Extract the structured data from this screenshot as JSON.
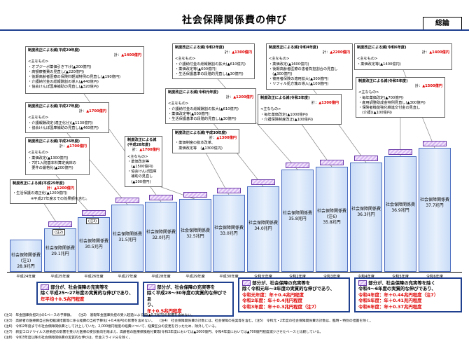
{
  "header": {
    "title": "社会保障関係費の伸び",
    "badge": "総論"
  },
  "bar_label": "社会保障関係費",
  "bars": [
    {
      "year": "平成24年度",
      "value": "28.9兆円",
      "note": "(注1)",
      "cap": false,
      "cap_tag": ""
    },
    {
      "year": "平成25年度",
      "value": "29.1兆円",
      "note": "",
      "cap": true,
      "cap_tag": "(注2)"
    },
    {
      "year": "平成26年度",
      "value": "30.5兆円",
      "note": "",
      "cap": true,
      "cap_tag": "(注3)"
    },
    {
      "year": "平成27年度",
      "value": "31.5兆円",
      "note": "",
      "cap": true,
      "cap_tag": ""
    },
    {
      "year": "平成28年度",
      "value": "32.0兆円",
      "note": "",
      "cap": true,
      "cap_tag": ""
    },
    {
      "year": "平成29年度",
      "value": "32.5兆円",
      "note": "",
      "cap": true,
      "cap_tag": ""
    },
    {
      "year": "平成30年度",
      "value": "33.0兆円",
      "note": "",
      "cap": true,
      "cap_tag": ""
    },
    {
      "year": "令和元年度",
      "value": "34.0兆円",
      "note": "",
      "cap": true,
      "cap_tag": ""
    },
    {
      "year": "令和2年度",
      "value": "35.8兆円",
      "note": "",
      "cap": true,
      "cap_tag": ""
    },
    {
      "year": "令和3年度",
      "value": "35.8兆円",
      "note": "(注6)",
      "cap": true,
      "cap_tag": ""
    },
    {
      "year": "令和4年度",
      "value": "36.3兆円",
      "note": "",
      "cap": true,
      "cap_tag": ""
    },
    {
      "year": "令和5年度",
      "value": "36.9兆円",
      "note": "",
      "cap": true,
      "cap_tag": ""
    },
    {
      "year": "令和6年度",
      "value": "37.7兆円",
      "note": "",
      "cap": true,
      "cap_tag": ""
    }
  ],
  "reform_boxes": [
    {
      "id": "h25",
      "header": "制度改正による減(平成25年度)",
      "total_pre": "",
      "total_red": "",
      "sub": "",
      "items": [
        "・生活保護の適正化(▲1200億円)",
        "　　　　　※平成27年度までの効果額を含む。"
      ],
      "red_inline": "計：▲1200億円"
    },
    {
      "id": "h26",
      "header": "制度改正による減(平成26年度)",
      "total_pre": "計：",
      "total_red": "▲1700億円",
      "sub": "<主なもの>",
      "items": [
        "・薬価改定(▲1300億円)",
        "・7対1入院基本料算定病床の",
        "　要件の厳格化(▲200億円)"
      ]
    },
    {
      "id": "h27",
      "header": "制度改正による減(平成27年度)",
      "total_pre": "計：",
      "total_red": "▲1700億円",
      "sub": "<主なもの>",
      "items": [
        "・介護報酬改定(適正化分)(▲1130億円)",
        "・協会けんぽ国庫補助の見直し(▲460億円)"
      ]
    },
    {
      "id": "h29",
      "header": "制度改正による減(平成29年度)",
      "total_pre": "計：",
      "total_red": "▲1400億円",
      "sub": "<主なもの>",
      "items": [
        "・オプジーボ薬価引き下げ(▲200億円)",
        "・高額療養費の見直し(▲220億円)",
        "・後期高齢者医療の保険料軽減特例の見直し(▲190億円)",
        "・介護納付金の総報酬割の導入(▲440億円)",
        "・協会けんぽ国庫補助の見直し(▲320億円)"
      ]
    },
    {
      "id": "h28",
      "header": "制度改正による減",
      "header2": "(平成28年度)",
      "total_pre": "計：",
      "total_red": "▲1700億円",
      "sub": "<主なもの>",
      "items": [
        "・薬価改定等",
        "　(▲1500億円)",
        "・協会けんぽ国庫",
        "　補助の見直し",
        "　(▲200億円)"
      ]
    },
    {
      "id": "h30",
      "header": "制度改正による減(平成30年度)",
      "total_pre": "計：",
      "total_red": "▲1300億円",
      "sub": "",
      "items": [
        "・薬価制度の抜本改革、",
        "　薬価改定等　(▲1300億円)"
      ]
    },
    {
      "id": "r1",
      "header": "制度改正による減(令和元年度)",
      "total_pre": "計：",
      "total_red": "▲1200億円",
      "sub": "<主なもの>",
      "items": [
        "・介護納付金の総報酬割の拡大(▲610億円)",
        "・薬価改定等(▲500億円)",
        "・生活保護基準の段階的見直し(▲30億円)"
      ]
    },
    {
      "id": "r2",
      "header": "制度改正による減(令和2年度)",
      "total_pre": "計：",
      "total_red": "▲1300億円",
      "sub": "<主なもの>",
      "items": [
        "・介護納付金の総報酬割の拡大(▲610億円)",
        "・薬価改定等(▲600億円)",
        "・生活保護基準の段階的見直し(▲30億円)"
      ]
    },
    {
      "id": "r3",
      "header": "制度改正による減(令和3年度)",
      "total_pre": "計：",
      "total_red": "▲1300億円",
      "sub": "<主なもの>",
      "items": [
        "・毎年薬価改定(▲1000億円)",
        "・介護保険制度改正(▲100億円)"
      ]
    },
    {
      "id": "r4",
      "header": "制度改正による減(令和4年度)",
      "total_pre": "計：",
      "total_red": "▲2200億円",
      "sub": "<主なもの>",
      "items": [
        "・薬価改定(▲1600億円)",
        "・後期高齢者医療の患者負担割合の見直し",
        "　(▲300億円)",
        "・被用者保険の適用拡大(▲300億円)",
        "・リフィル処方箋の導入(▲100億円)"
      ]
    },
    {
      "id": "r5",
      "header": "制度改正による減(令和5年度)",
      "total_pre": "計：",
      "total_red": "▲1500億円",
      "sub": "<主なもの>",
      "items": [
        "・毎年薬価改定(▲700億円)",
        "・雇用調整助成金特例見直し(▲300億円)",
        "・保険者機能強化推進交付金の見直し",
        "　(介護)(▲100億円)"
      ]
    },
    {
      "id": "r6",
      "header": "制度改正による減(令和6年度)",
      "total_pre": "計：",
      "total_red": "▲1400億円",
      "sub": "<主なもの>",
      "items": [
        "・薬価改定等(▲1400億円)"
      ]
    }
  ],
  "summary_boxes": [
    {
      "lines": [
        "部分が、社会保障の充実等を",
        "除く平成25～27年度の実質的な伸びであり、"
      ],
      "red": "年平均＋0.5兆円程度"
    },
    {
      "lines": [
        "部分が、社会保障の充実等を",
        "除く平成28～30年度の実質的な伸びであ",
        "り、"
      ],
      "red": "年＋0.5兆円程度"
    },
    {
      "lines": [
        "部分が、社会保障の充実等を",
        "除く令和元年～3年度の実質的な伸びであり、",
        "令和元年度：年＋0.4兆円程度",
        "令和2年度：年＋0.4兆円程度",
        "令和3年度：年＋0.3兆円程度（注7）"
      ],
      "red": ""
    },
    {
      "lines": [
        "部分が、社会保障の充実等を除く",
        "令和4～6年度の実質的な伸びであり、",
        "令和4年度：年＋0.44兆円程度（注7）",
        "令和5年度：年＋0.41兆円程度",
        "令和6年度：年＋0.37兆円程度"
      ],
      "red": ""
    }
  ],
  "footnotes": [
    "(注1)　年金国庫負担2分の1ベースの予算額。　　(注2)　基礎年金国庫負担の受入超過による減(▲0.3兆円)の影響を含めない。",
    "(注3)　高齢者の医療費自己負担軽減措置等に係る経費の当初予算化(＋0.4兆円)の影響を含めない。　　(注4)　社会保障関係費の計数には、社会保障の充実等を含む。(注5)　令和元・2年度の社会保障関係費の計数は、臨時・特別の措置を除く。",
    "(注6)　令和2年度までの社会保障関係費として計上していた、2,000億円程度の経費について、経費区分の変更を行ったため、除外している。",
    "(注7)　新型コロナウイルス感染症の影響を受けた医療の受診動向を踏まえ、高齢者の医療保険給付費等(令和3年度においては▲2000億円、令和4年度においては▲700億円程度減少させたベースと比較している。",
    "(注8)　令和3年度以降の社会保障関係費の実質的な伸びは、年金スライド分を除く。"
  ]
}
